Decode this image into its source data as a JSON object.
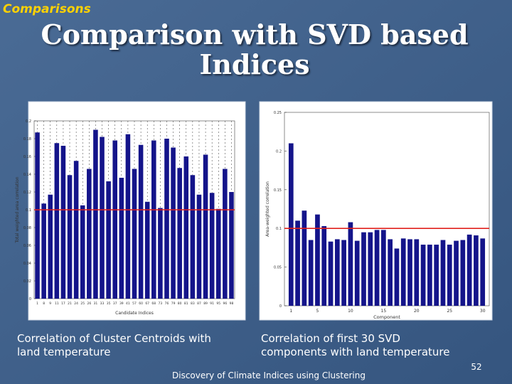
{
  "section": "Comparisons",
  "title": "Comparison with SVD based Indices",
  "captions": [
    "Correlation of Cluster Centroids with land temperature",
    "Correlation of first 30 SVD components with land temperature"
  ],
  "footer": "Discovery of Climate Indices using Clustering",
  "page_number": "52",
  "chart_data": [
    {
      "type": "bar",
      "xlabel": "Candidate Indices",
      "ylabel": "Total weighted area correlation",
      "categories": [
        "1",
        "8",
        "9",
        "11",
        "17",
        "21",
        "24",
        "25",
        "26",
        "31",
        "33",
        "35",
        "37",
        "39",
        "41",
        "57",
        "60",
        "67",
        "68",
        "73",
        "76",
        "79",
        "80",
        "81",
        "83",
        "87",
        "89",
        "91",
        "95",
        "96",
        "98"
      ],
      "values": [
        0.187,
        0.107,
        0.117,
        0.175,
        0.172,
        0.139,
        0.155,
        0.105,
        0.146,
        0.19,
        0.182,
        0.132,
        0.178,
        0.136,
        0.185,
        0.146,
        0.173,
        0.109,
        0.178,
        0.102,
        0.18,
        0.17,
        0.147,
        0.16,
        0.139,
        0.117,
        0.162,
        0.119,
        0.101,
        0.146,
        0.12
      ],
      "color": "#14148a",
      "reference_line": 0.1,
      "reference_color": "#e0201c",
      "ylim": [
        0,
        0.2
      ],
      "yticks": [
        0,
        0.02,
        0.04,
        0.06,
        0.08,
        0.1,
        0.12,
        0.14,
        0.16,
        0.18,
        0.2
      ]
    },
    {
      "type": "bar",
      "xlabel": "Component",
      "ylabel": "Area-weighted correlation",
      "x": [
        1,
        2,
        3,
        4,
        5,
        6,
        7,
        8,
        9,
        10,
        11,
        12,
        13,
        14,
        15,
        16,
        17,
        18,
        19,
        20,
        21,
        22,
        23,
        24,
        25,
        26,
        27,
        28,
        29,
        30
      ],
      "values": [
        0.21,
        0.11,
        0.123,
        0.085,
        0.118,
        0.103,
        0.083,
        0.086,
        0.085,
        0.108,
        0.084,
        0.095,
        0.095,
        0.098,
        0.098,
        0.086,
        0.074,
        0.087,
        0.086,
        0.086,
        0.079,
        0.079,
        0.079,
        0.085,
        0.079,
        0.084,
        0.085,
        0.092,
        0.091,
        0.087
      ],
      "color": "#14148a",
      "reference_line": 0.1,
      "reference_color": "#e0201c",
      "xlim": [
        0,
        31
      ],
      "xticks": [
        1,
        5,
        10,
        15,
        20,
        25,
        30
      ],
      "ylim": [
        0,
        0.25
      ],
      "yticks": [
        0,
        0.05,
        0.1,
        0.15,
        0.2,
        0.25
      ]
    }
  ]
}
